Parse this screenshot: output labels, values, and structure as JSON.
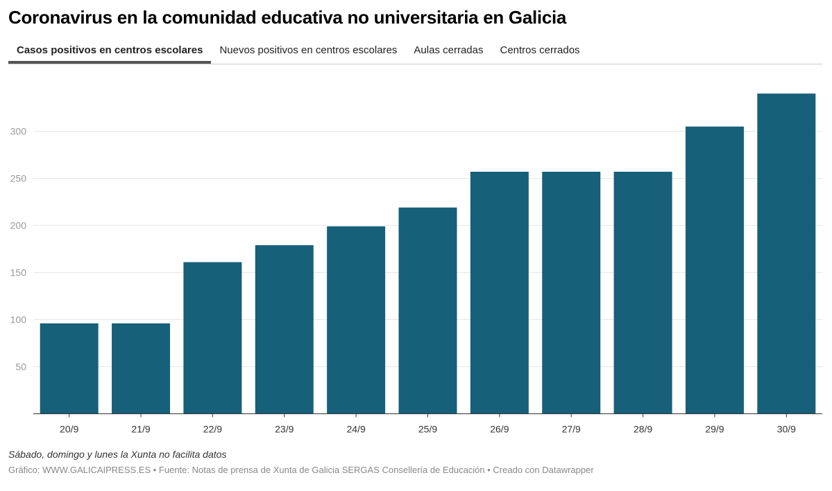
{
  "title": "Coronavirus en la comunidad educativa no universitaria en Galicia",
  "tabs": [
    {
      "label": "Casos positivos en centros escolares",
      "active": true
    },
    {
      "label": "Nuevos positivos en centros escolares",
      "active": false
    },
    {
      "label": "Aulas cerradas",
      "active": false
    },
    {
      "label": "Centros cerrados",
      "active": false
    }
  ],
  "note": "Sábado, domingo y lunes la Xunta no facilita datos",
  "credit": "Gráfico: WWW.GALICAIPRESS.ES • Fuente: Notas de prensa de Xunta de Galicia SERGAS Consellería de Educación • Creado con Datawrapper",
  "chart_data": {
    "type": "bar",
    "categories": [
      "20/9",
      "21/9",
      "22/9",
      "23/9",
      "24/9",
      "25/9",
      "26/9",
      "27/9",
      "28/9",
      "29/9",
      "30/9"
    ],
    "values": [
      96,
      96,
      161,
      179,
      199,
      219,
      257,
      257,
      257,
      305,
      340
    ],
    "yticks": [
      "50",
      "100",
      "150",
      "200",
      "250",
      "300"
    ],
    "ylim": [
      0,
      350
    ],
    "grid": true,
    "bar_color": "#17607a"
  }
}
